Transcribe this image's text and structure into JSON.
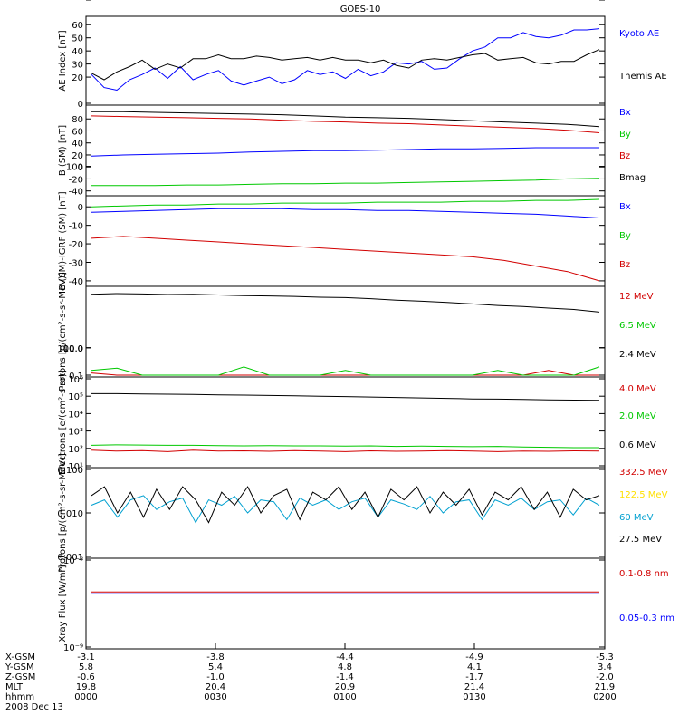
{
  "title": "GOES-10",
  "colors": {
    "black": "#000000",
    "blue": "#0000ff",
    "green": "#00c800",
    "red": "#d20000",
    "yellow": "#ffe000",
    "cyan": "#00a0d0"
  },
  "chart_data": [
    {
      "type": "line",
      "panel": "ae",
      "ylabel": "AE Index [nT]",
      "ylim": [
        0,
        65
      ],
      "ticks": [
        "0",
        "10",
        "20",
        "30",
        "40",
        "50",
        "60"
      ],
      "series": [
        {
          "name": "Kyoto AE",
          "color": "blue",
          "values": [
            22,
            12,
            10,
            18,
            22,
            27,
            19,
            28,
            18,
            22,
            25,
            17,
            14,
            17,
            20,
            15,
            18,
            25,
            22,
            24,
            19,
            26,
            21,
            24,
            31,
            30,
            32,
            26,
            27,
            34,
            40,
            43,
            50,
            50,
            54,
            51,
            50,
            52,
            56,
            56,
            57
          ]
        },
        {
          "name": "Themis AE",
          "color": "black",
          "values": [
            23,
            18,
            24,
            28,
            33,
            26,
            30,
            27,
            34,
            34,
            37,
            34,
            34,
            36,
            35,
            33,
            34,
            35,
            33,
            35,
            33,
            33,
            31,
            33,
            29,
            27,
            33,
            34,
            33,
            35,
            37,
            38,
            33,
            34,
            35,
            31,
            30,
            32,
            32,
            37,
            41
          ]
        }
      ]
    },
    {
      "type": "line",
      "panel": "b",
      "ylabel": "B (SM) [nT]",
      "ylim": [
        -45,
        100
      ],
      "ticks": [
        "100",
        "80",
        "60",
        "40",
        "20",
        "0",
        "-20",
        "-40"
      ],
      "series": [
        {
          "name": "Bx",
          "color": "blue",
          "values": [
            18,
            20,
            21,
            22,
            23,
            25,
            26,
            27,
            27,
            28,
            29,
            30,
            30,
            31,
            32,
            32,
            32
          ]
        },
        {
          "name": "By",
          "color": "green",
          "values": [
            -31,
            -31,
            -31,
            -30,
            -30,
            -29,
            -28,
            -28,
            -27,
            -27,
            -26,
            -25,
            -24,
            -23,
            -22,
            -20,
            -19
          ]
        },
        {
          "name": "Bz",
          "color": "red",
          "values": [
            85,
            84,
            83,
            82,
            81,
            80,
            78,
            76,
            75,
            73,
            72,
            70,
            68,
            66,
            64,
            61,
            57
          ]
        },
        {
          "name": "Bmag",
          "color": "black",
          "values": [
            92,
            92,
            91,
            90,
            89,
            88,
            87,
            85,
            83,
            82,
            81,
            79,
            77,
            75,
            73,
            71,
            67
          ]
        }
      ]
    },
    {
      "type": "line",
      "panel": "dbr",
      "ylabel": "B (SM)-IGRF (SM) [nT]",
      "ylim": [
        -42,
        5
      ],
      "ticks": [
        "0",
        "-10",
        "-20",
        "-30",
        "-40"
      ],
      "series": [
        {
          "name": "Bx",
          "color": "blue",
          "values": [
            -3,
            -2.5,
            -2,
            -1.5,
            -1,
            -1,
            -1,
            -1.5,
            -1.5,
            -2,
            -2,
            -2.5,
            -3,
            -3.5,
            -4,
            -5,
            -6
          ]
        },
        {
          "name": "By",
          "color": "green",
          "values": [
            0,
            0.5,
            1,
            1,
            1.5,
            1.5,
            2,
            2,
            2,
            2.5,
            2.5,
            2.5,
            3,
            3,
            3.5,
            3.5,
            4
          ]
        },
        {
          "name": "Bz",
          "color": "red",
          "values": [
            -17,
            -16,
            -17,
            -18,
            -19,
            -20,
            -21,
            -22,
            -23,
            -24,
            -25,
            -26,
            -27,
            -29,
            -32,
            -35,
            -40
          ]
        }
      ]
    },
    {
      "type": "line",
      "panel": "protons",
      "ylabel": "Protons [p/(cm²-s-sr-MeV)]",
      "ylim": [
        0.1,
        150
      ],
      "ticks": [
        "100.0",
        "10.0",
        "1.0",
        "0.1"
      ],
      "series": [
        {
          "name": "12 MeV",
          "color": "red",
          "values": [
            0.12,
            0.1,
            0.1,
            0.1,
            0.1,
            0.1,
            0.1,
            0.1,
            0.1,
            0.1,
            0.1,
            0.1,
            0.1,
            0.1,
            0.1,
            0.1,
            0.1,
            0.1,
            0.15,
            0.1,
            0.1
          ]
        },
        {
          "name": "6.5 MeV",
          "color": "green",
          "values": [
            0.15,
            0.18,
            0.1,
            0.1,
            0.1,
            0.1,
            0.2,
            0.1,
            0.1,
            0.1,
            0.15,
            0.1,
            0.1,
            0.1,
            0.1,
            0.1,
            0.15,
            0.1,
            0.1,
            0.1,
            0.2
          ]
        },
        {
          "name": "2.4 MeV",
          "color": "black",
          "values": [
            90,
            95,
            92,
            88,
            90,
            85,
            80,
            78,
            75,
            70,
            68,
            62,
            55,
            50,
            45,
            40,
            35,
            32,
            28,
            25,
            20
          ]
        }
      ]
    },
    {
      "type": "line",
      "panel": "electrons",
      "ylabel": "Electrons [e/(cm²-s-sr)]",
      "ylim": [
        10,
        1000000
      ],
      "ticks": [
        "10¹",
        "10²",
        "10³",
        "10⁴",
        "10⁵",
        "10⁶"
      ],
      "series": [
        {
          "name": "4.0 MeV",
          "color": "red",
          "values": [
            80,
            70,
            75,
            65,
            80,
            70,
            72,
            68,
            75,
            70,
            65,
            72,
            68,
            70,
            75,
            70,
            65,
            70,
            68,
            72,
            70
          ]
        },
        {
          "name": "2.0 MeV",
          "color": "green",
          "values": [
            150,
            160,
            155,
            150,
            150,
            145,
            140,
            145,
            140,
            140,
            135,
            140,
            130,
            135,
            130,
            125,
            130,
            120,
            115,
            110,
            110
          ]
        },
        {
          "name": "0.6 MeV",
          "color": "black",
          "values": [
            140000,
            140000,
            135000,
            130000,
            125000,
            120000,
            115000,
            110000,
            105000,
            100000,
            95000,
            90000,
            85000,
            80000,
            75000,
            70000,
            68000,
            65000,
            62000,
            60000,
            58000
          ]
        }
      ]
    },
    {
      "type": "line",
      "panel": "hiprotons",
      "ylabel": "Protons [p/(cm²-s-sr-MeV)]",
      "ylim": [
        0.001,
        0.1
      ],
      "ticks": [
        "0.001",
        "0.010",
        "0.100"
      ],
      "series": [
        {
          "name": "332.5 MeV",
          "color": "red",
          "values": []
        },
        {
          "name": "122.5 MeV",
          "color": "yellow",
          "values": []
        },
        {
          "name": "60 MeV",
          "color": "cyan",
          "values": [
            0.015,
            0.02,
            0.008,
            0.02,
            0.025,
            0.012,
            0.018,
            0.022,
            0.006,
            0.02,
            0.015,
            0.024,
            0.01,
            0.02,
            0.018,
            0.007,
            0.022,
            0.015,
            0.02,
            0.012,
            0.018,
            0.022,
            0.008,
            0.02,
            0.016,
            0.012,
            0.024,
            0.01,
            0.018,
            0.02,
            0.007,
            0.02,
            0.015,
            0.022,
            0.012,
            0.018,
            0.02,
            0.009,
            0.022,
            0.015
          ]
        },
        {
          "name": "27.5 MeV",
          "color": "black",
          "values": [
            0.025,
            0.04,
            0.01,
            0.03,
            0.008,
            0.035,
            0.012,
            0.04,
            0.02,
            0.006,
            0.03,
            0.015,
            0.04,
            0.01,
            0.025,
            0.035,
            0.007,
            0.03,
            0.02,
            0.04,
            0.012,
            0.03,
            0.008,
            0.035,
            0.02,
            0.04,
            0.01,
            0.03,
            0.015,
            0.035,
            0.009,
            0.03,
            0.02,
            0.04,
            0.012,
            0.03,
            0.008,
            0.035,
            0.02,
            0.025
          ]
        }
      ]
    },
    {
      "type": "line",
      "panel": "xray",
      "ylabel": "Xray Flux [W/m²]",
      "ylim": [
        1e-09,
        1e-08
      ],
      "ticks": [
        "10⁻⁸",
        "10⁻⁹"
      ],
      "series": [
        {
          "name": "0.1-0.8 nm",
          "color": "red",
          "values": [
            4.3e-09,
            4.3e-09,
            4.3e-09,
            4.3e-09,
            4.3e-09,
            4.3e-09,
            4.3e-09,
            4.3e-09,
            4.3e-09,
            4.3e-09,
            4.3e-09
          ]
        },
        {
          "name": "0.05-0.3 nm",
          "color": "blue",
          "values": [
            4.1e-09,
            4.1e-09,
            4.1e-09,
            4.1e-09,
            4.1e-09,
            4.1e-09,
            4.1e-09,
            4.1e-09,
            4.1e-09,
            4.1e-09,
            4.1e-09
          ]
        }
      ]
    }
  ],
  "bottom_axis": {
    "row_labels": [
      "X-GSM",
      "Y-GSM",
      "Z-GSM",
      "MLT",
      "hhmm"
    ],
    "columns": [
      [
        "-3.1",
        "5.8",
        "-0.6",
        "19.8",
        "0000"
      ],
      [
        "-3.8",
        "5.4",
        "-1.0",
        "20.4",
        "0030"
      ],
      [
        "-4.4",
        "4.8",
        "-1.4",
        "20.9",
        "0100"
      ],
      [
        "-4.9",
        "4.1",
        "-1.7",
        "21.4",
        "0130"
      ],
      [
        "-5.3",
        "3.4",
        "-2.0",
        "21.9",
        "0200"
      ]
    ],
    "date": "2008 Dec 13"
  }
}
